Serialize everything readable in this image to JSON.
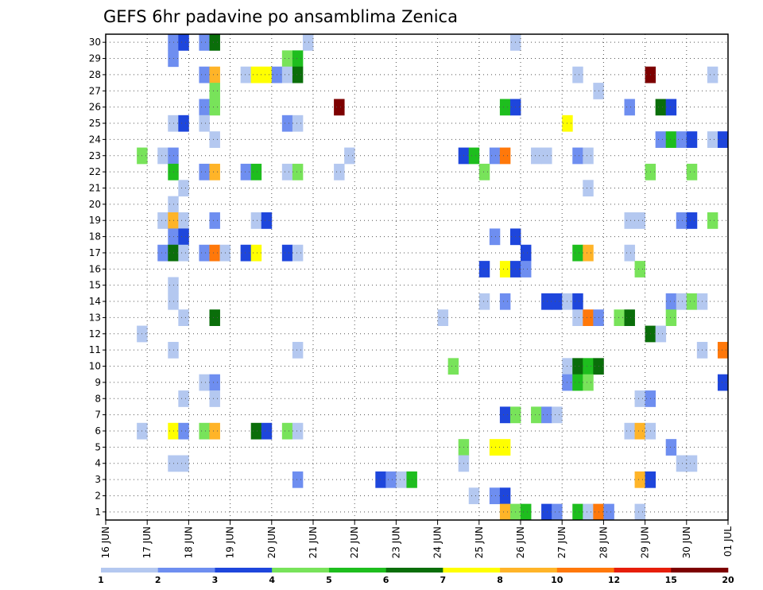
{
  "chart_data": {
    "type": "heatmap",
    "title": "GEFS 6hr padavine po ansamblima Zenica",
    "y_tick_labels": [
      "1",
      "2",
      "3",
      "4",
      "5",
      "6",
      "7",
      "8",
      "9",
      "10",
      "11",
      "12",
      "13",
      "14",
      "15",
      "16",
      "17",
      "18",
      "19",
      "20",
      "21",
      "22",
      "23",
      "24",
      "25",
      "26",
      "27",
      "28",
      "29",
      "30"
    ],
    "x_tick_labels": [
      "16 JUN",
      "17 JUN",
      "18 JUN",
      "19 JUN",
      "20 JUN",
      "21 JUN",
      "22 JUN",
      "23 JUN",
      "24 JUN",
      "25 JUN",
      "26 JUN",
      "27 JUN",
      "28 JUN",
      "29 JUN",
      "30 JUN",
      "01 JUL"
    ],
    "x_range_steps": [
      0,
      60
    ],
    "y_range_members": [
      0,
      30
    ],
    "grid": true,
    "colorbar": {
      "bounds": [
        "1",
        "2",
        "3",
        "4",
        "5",
        "6",
        "7",
        "8",
        "10",
        "12",
        "15",
        "20"
      ],
      "colors": [
        "#b4c8f0",
        "#6e8ef0",
        "#1e46dc",
        "#78e35a",
        "#1ebe1e",
        "#0a6e0a",
        "#ffff00",
        "#ffb428",
        "#ff780a",
        "#e61e0a",
        "#7d0000"
      ]
    },
    "cells": [
      [
        30,
        6,
        2
      ],
      [
        30,
        7,
        3
      ],
      [
        30,
        9,
        2
      ],
      [
        30,
        10,
        6
      ],
      [
        30,
        19,
        1
      ],
      [
        30,
        39,
        1
      ],
      [
        29,
        6,
        2
      ],
      [
        29,
        17,
        4
      ],
      [
        29,
        18,
        5
      ],
      [
        28,
        9,
        2
      ],
      [
        28,
        10,
        8
      ],
      [
        28,
        13,
        1
      ],
      [
        28,
        14,
        7
      ],
      [
        28,
        15,
        7
      ],
      [
        28,
        16,
        2
      ],
      [
        28,
        17,
        1
      ],
      [
        28,
        18,
        6
      ],
      [
        28,
        45,
        1
      ],
      [
        28,
        52,
        11
      ],
      [
        28,
        58,
        1
      ],
      [
        27,
        10,
        4
      ],
      [
        27,
        47,
        1
      ],
      [
        26,
        9,
        2
      ],
      [
        26,
        10,
        4
      ],
      [
        26,
        22,
        11
      ],
      [
        26,
        38,
        5
      ],
      [
        26,
        39,
        3
      ],
      [
        26,
        50,
        2
      ],
      [
        26,
        53,
        6
      ],
      [
        26,
        54,
        3
      ],
      [
        25,
        6,
        1
      ],
      [
        25,
        7,
        3
      ],
      [
        25,
        9,
        1
      ],
      [
        25,
        17,
        2
      ],
      [
        25,
        18,
        1
      ],
      [
        25,
        44,
        7
      ],
      [
        24,
        10,
        1
      ],
      [
        24,
        53,
        2
      ],
      [
        24,
        54,
        5
      ],
      [
        24,
        55,
        2
      ],
      [
        24,
        56,
        3
      ],
      [
        24,
        58,
        1
      ],
      [
        24,
        59,
        3
      ],
      [
        23,
        3,
        4
      ],
      [
        23,
        5,
        1
      ],
      [
        23,
        6,
        2
      ],
      [
        23,
        23,
        1
      ],
      [
        23,
        34,
        3
      ],
      [
        23,
        35,
        5
      ],
      [
        23,
        37,
        2
      ],
      [
        23,
        38,
        9
      ],
      [
        23,
        41,
        1
      ],
      [
        23,
        42,
        1
      ],
      [
        23,
        45,
        2
      ],
      [
        23,
        46,
        1
      ],
      [
        22,
        6,
        5
      ],
      [
        22,
        9,
        2
      ],
      [
        22,
        10,
        8
      ],
      [
        22,
        13,
        2
      ],
      [
        22,
        14,
        5
      ],
      [
        22,
        17,
        1
      ],
      [
        22,
        18,
        4
      ],
      [
        22,
        22,
        1
      ],
      [
        22,
        36,
        4
      ],
      [
        22,
        52,
        4
      ],
      [
        22,
        56,
        4
      ],
      [
        21,
        7,
        1
      ],
      [
        21,
        46,
        1
      ],
      [
        20,
        6,
        1
      ],
      [
        19,
        5,
        1
      ],
      [
        19,
        6,
        8
      ],
      [
        19,
        7,
        1
      ],
      [
        19,
        10,
        2
      ],
      [
        19,
        14,
        1
      ],
      [
        19,
        15,
        3
      ],
      [
        19,
        50,
        1
      ],
      [
        19,
        51,
        1
      ],
      [
        19,
        55,
        2
      ],
      [
        19,
        56,
        3
      ],
      [
        19,
        58,
        4
      ],
      [
        18,
        6,
        2
      ],
      [
        18,
        7,
        3
      ],
      [
        18,
        37,
        2
      ],
      [
        18,
        39,
        3
      ],
      [
        17,
        5,
        2
      ],
      [
        17,
        6,
        6
      ],
      [
        17,
        7,
        1
      ],
      [
        17,
        9,
        2
      ],
      [
        17,
        10,
        9
      ],
      [
        17,
        11,
        1
      ],
      [
        17,
        13,
        3
      ],
      [
        17,
        14,
        7
      ],
      [
        17,
        17,
        3
      ],
      [
        17,
        18,
        1
      ],
      [
        17,
        40,
        3
      ],
      [
        17,
        45,
        5
      ],
      [
        17,
        46,
        8
      ],
      [
        17,
        50,
        1
      ],
      [
        16,
        36,
        3
      ],
      [
        16,
        38,
        7
      ],
      [
        16,
        39,
        3
      ],
      [
        16,
        40,
        2
      ],
      [
        16,
        51,
        4
      ],
      [
        15,
        6,
        1
      ],
      [
        14,
        6,
        1
      ],
      [
        14,
        36,
        1
      ],
      [
        14,
        38,
        2
      ],
      [
        14,
        42,
        3
      ],
      [
        14,
        43,
        3
      ],
      [
        14,
        44,
        1
      ],
      [
        14,
        45,
        3
      ],
      [
        14,
        54,
        2
      ],
      [
        14,
        55,
        1
      ],
      [
        14,
        56,
        4
      ],
      [
        14,
        57,
        1
      ],
      [
        13,
        7,
        1
      ],
      [
        13,
        10,
        6
      ],
      [
        13,
        32,
        1
      ],
      [
        13,
        45,
        1
      ],
      [
        13,
        46,
        9
      ],
      [
        13,
        47,
        2
      ],
      [
        13,
        49,
        4
      ],
      [
        13,
        50,
        6
      ],
      [
        13,
        54,
        4
      ],
      [
        12,
        3,
        1
      ],
      [
        12,
        52,
        6
      ],
      [
        12,
        53,
        1
      ],
      [
        11,
        6,
        1
      ],
      [
        11,
        18,
        1
      ],
      [
        11,
        57,
        1
      ],
      [
        11,
        59,
        9
      ],
      [
        10,
        33,
        4
      ],
      [
        10,
        44,
        1
      ],
      [
        10,
        45,
        6
      ],
      [
        10,
        46,
        5
      ],
      [
        10,
        47,
        6
      ],
      [
        9,
        9,
        1
      ],
      [
        9,
        10,
        2
      ],
      [
        9,
        44,
        2
      ],
      [
        9,
        45,
        5
      ],
      [
        9,
        46,
        4
      ],
      [
        9,
        59,
        3
      ],
      [
        8,
        7,
        1
      ],
      [
        8,
        10,
        1
      ],
      [
        8,
        51,
        1
      ],
      [
        8,
        52,
        2
      ],
      [
        7,
        38,
        3
      ],
      [
        7,
        39,
        4
      ],
      [
        7,
        41,
        4
      ],
      [
        7,
        42,
        2
      ],
      [
        7,
        43,
        1
      ],
      [
        6,
        3,
        1
      ],
      [
        6,
        6,
        7
      ],
      [
        6,
        7,
        2
      ],
      [
        6,
        9,
        4
      ],
      [
        6,
        10,
        8
      ],
      [
        6,
        14,
        6
      ],
      [
        6,
        15,
        3
      ],
      [
        6,
        17,
        4
      ],
      [
        6,
        18,
        1
      ],
      [
        6,
        50,
        1
      ],
      [
        6,
        51,
        8
      ],
      [
        6,
        52,
        1
      ],
      [
        5,
        34,
        4
      ],
      [
        5,
        37,
        7
      ],
      [
        5,
        38,
        7
      ],
      [
        5,
        54,
        2
      ],
      [
        4,
        6,
        1
      ],
      [
        4,
        7,
        1
      ],
      [
        4,
        34,
        1
      ],
      [
        4,
        55,
        1
      ],
      [
        4,
        56,
        1
      ],
      [
        3,
        18,
        2
      ],
      [
        3,
        26,
        3
      ],
      [
        3,
        27,
        2
      ],
      [
        3,
        28,
        1
      ],
      [
        3,
        29,
        5
      ],
      [
        3,
        51,
        8
      ],
      [
        3,
        52,
        3
      ],
      [
        2,
        35,
        1
      ],
      [
        2,
        37,
        2
      ],
      [
        2,
        38,
        3
      ],
      [
        1,
        38,
        8
      ],
      [
        1,
        39,
        4
      ],
      [
        1,
        40,
        5
      ],
      [
        1,
        42,
        3
      ],
      [
        1,
        43,
        2
      ],
      [
        1,
        45,
        5
      ],
      [
        1,
        46,
        1
      ],
      [
        1,
        47,
        9
      ],
      [
        1,
        48,
        2
      ],
      [
        1,
        51,
        1
      ]
    ]
  }
}
